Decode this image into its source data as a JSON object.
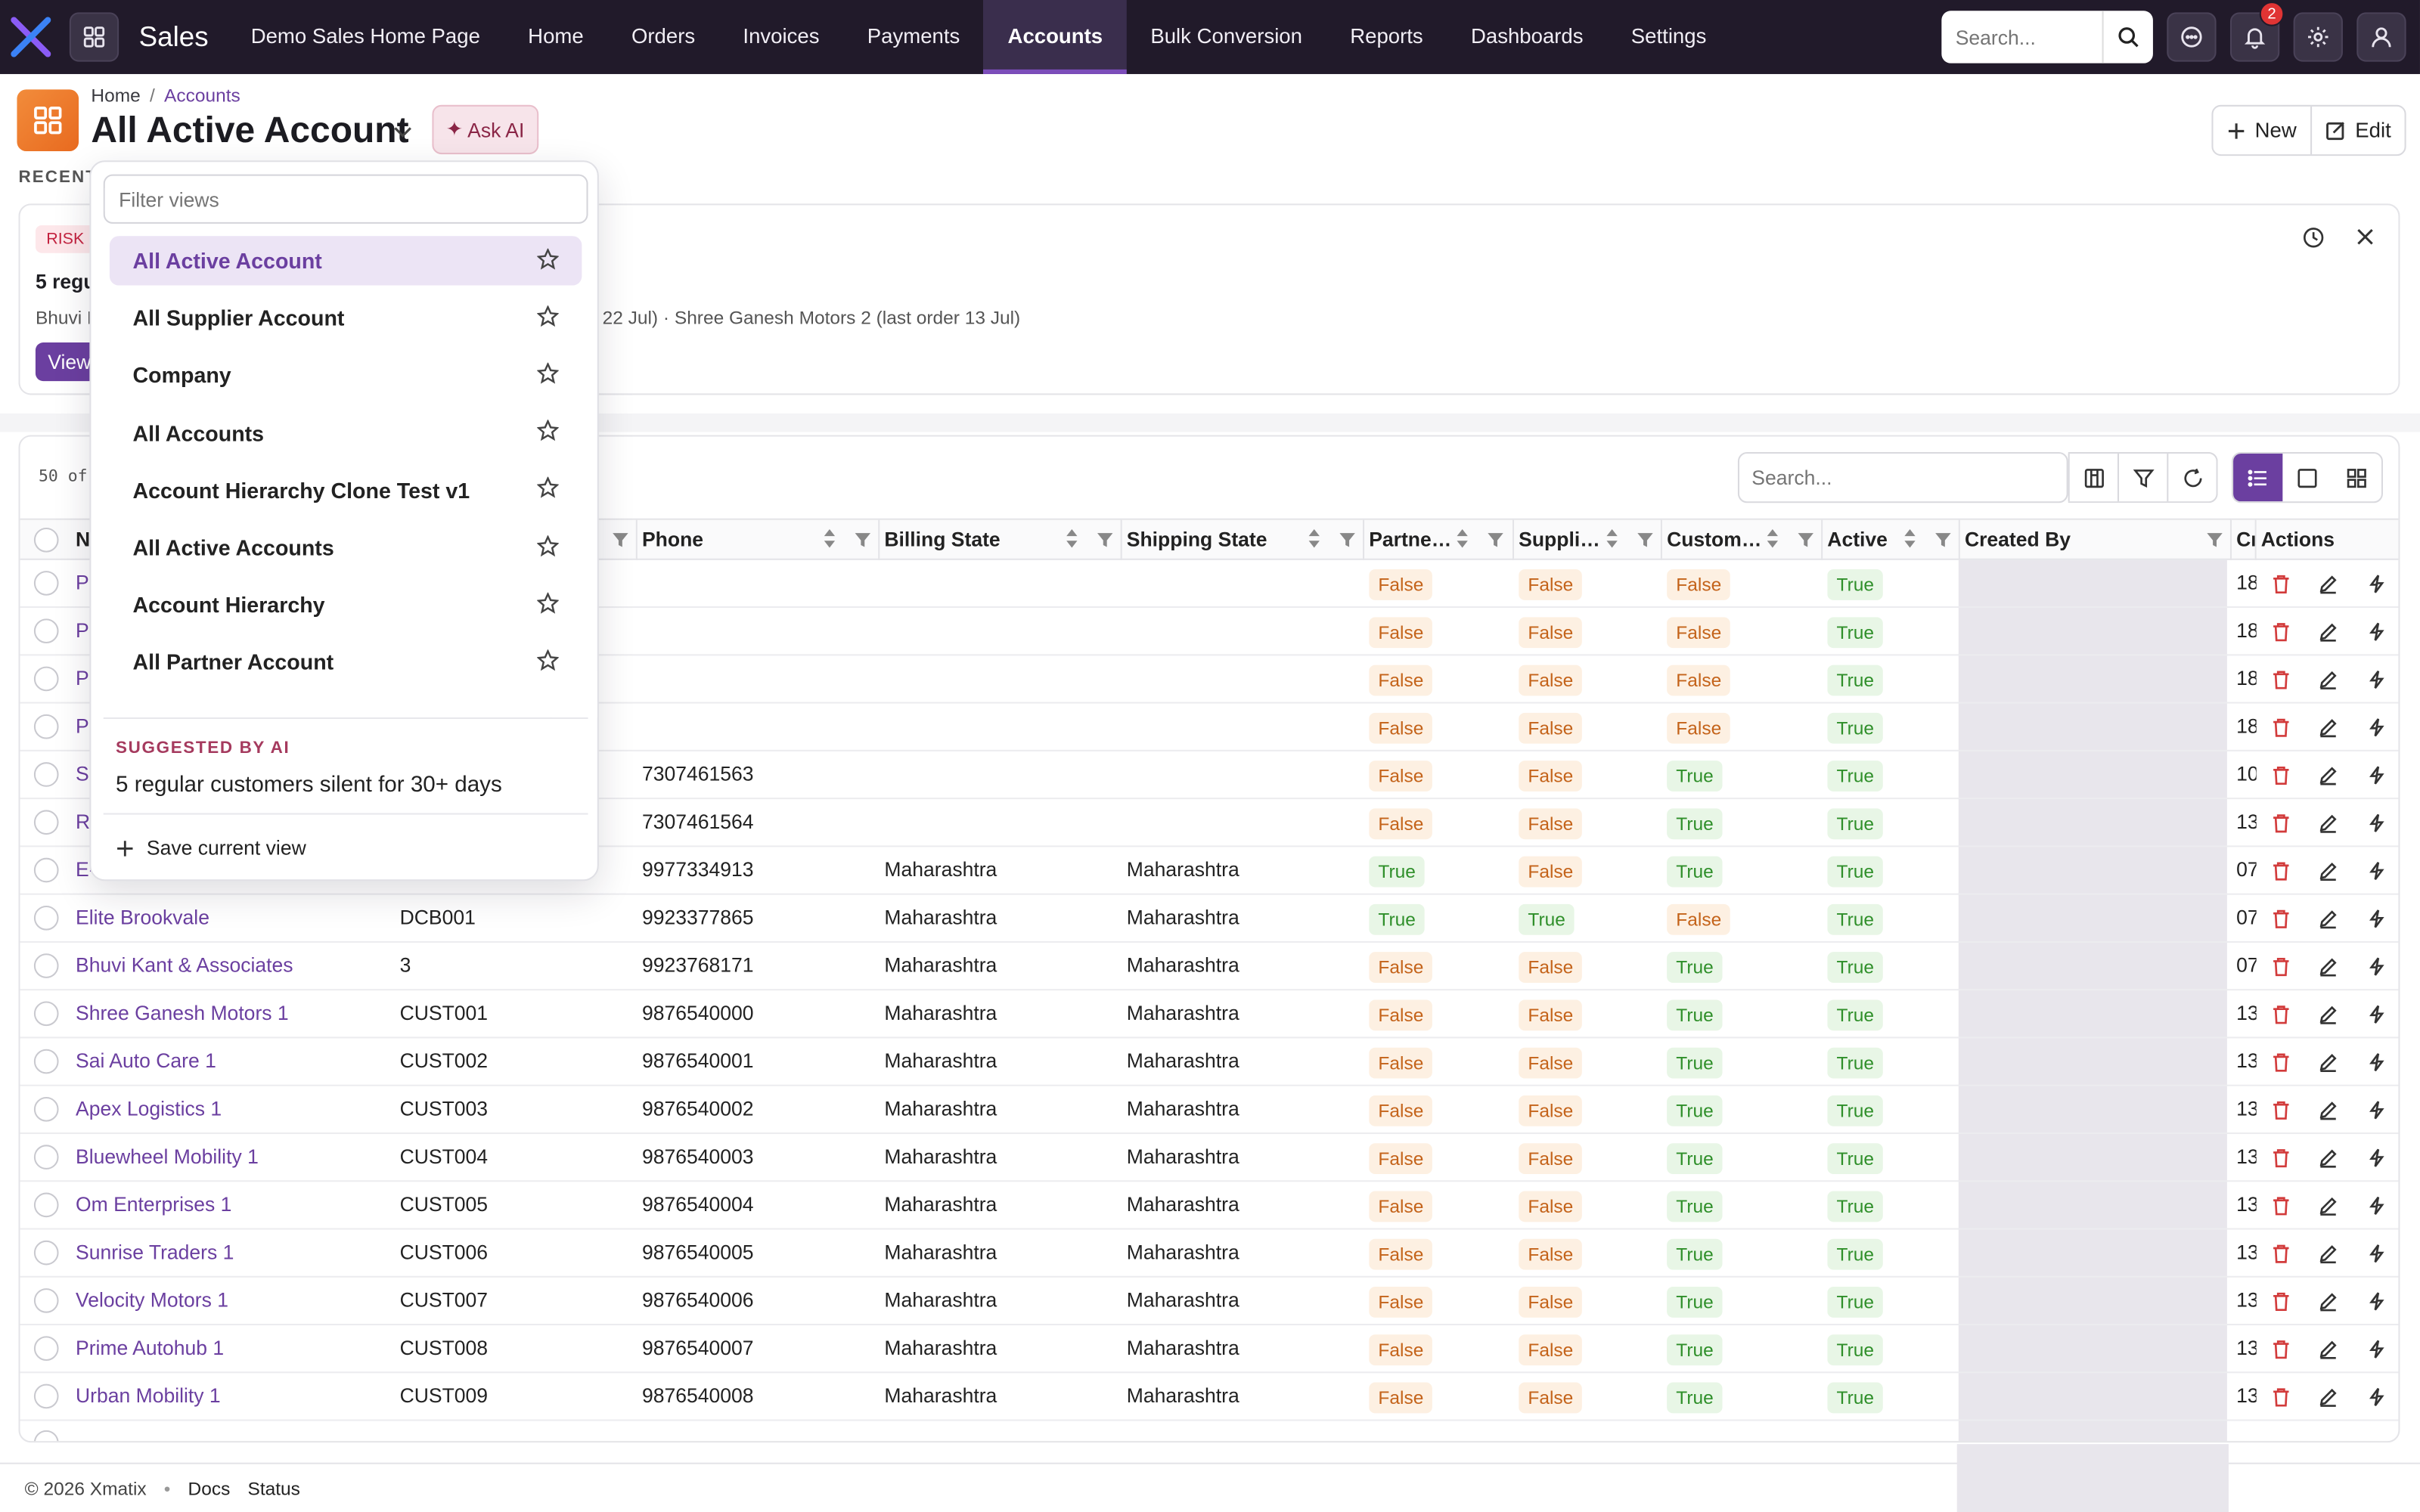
{
  "app": {
    "name": "Sales",
    "brand_color": "#7c4dba",
    "nav_bg": "#211a2a"
  },
  "nav": {
    "items": [
      {
        "label": "Demo Sales Home Page"
      },
      {
        "label": "Home"
      },
      {
        "label": "Orders"
      },
      {
        "label": "Invoices"
      },
      {
        "label": "Payments"
      },
      {
        "label": "Accounts",
        "active": true
      },
      {
        "label": "Bulk Conversion"
      },
      {
        "label": "Reports"
      },
      {
        "label": "Dashboards"
      },
      {
        "label": "Settings"
      }
    ],
    "search_placeholder": "Search...",
    "notification_count": "2",
    "icons": [
      "apps-grid-icon",
      "search-icon",
      "chat-icon",
      "bell-icon",
      "gear-icon",
      "user-icon"
    ]
  },
  "header": {
    "breadcrumb": [
      "Home",
      "Accounts"
    ],
    "title": "All Active Account",
    "ask_ai_label": "Ask AI",
    "new_label": "New",
    "edit_label": "Edit"
  },
  "recent": {
    "label": "RECENT",
    "badge": "RISK",
    "title": "5 regu",
    "desc_start": "Bhuvi K",
    "desc_end": "r 22 Jul) · Shree Ganesh Motors 2 (last order 13 Jul)",
    "view_label": "View"
  },
  "table": {
    "count_label": "50 of",
    "search_placeholder": "Search...",
    "columns": [
      "Na",
      "",
      "Phone",
      "Billing State",
      "Shipping State",
      "Partne…",
      "Suppli…",
      "Custom…",
      "Active",
      "Created By",
      "Cr",
      "Actions"
    ],
    "rows": [
      {
        "name": "Pu",
        "code": "",
        "phone": "",
        "billing": "",
        "shipping": "",
        "partner": "False",
        "supplier": "False",
        "customer": "False",
        "active": "True",
        "cr": "18"
      },
      {
        "name": "Pu",
        "code": "",
        "phone": "",
        "billing": "",
        "shipping": "",
        "partner": "False",
        "supplier": "False",
        "customer": "False",
        "active": "True",
        "cr": "18"
      },
      {
        "name": "Pu",
        "code": "",
        "phone": "",
        "billing": "",
        "shipping": "",
        "partner": "False",
        "supplier": "False",
        "customer": "False",
        "active": "True",
        "cr": "18"
      },
      {
        "name": "Pu",
        "code": "",
        "phone": "",
        "billing": "",
        "shipping": "",
        "partner": "False",
        "supplier": "False",
        "customer": "False",
        "active": "True",
        "cr": "18"
      },
      {
        "name": "Sh",
        "code": "",
        "phone": "7307461563",
        "billing": "",
        "shipping": "",
        "partner": "False",
        "supplier": "False",
        "customer": "True",
        "active": "True",
        "cr": "10"
      },
      {
        "name": "Ra",
        "code": "",
        "phone": "7307461564",
        "billing": "",
        "shipping": "",
        "partner": "False",
        "supplier": "False",
        "customer": "True",
        "active": "True",
        "cr": "13"
      },
      {
        "name": "E-",
        "code": "",
        "phone": "9977334913",
        "billing": "Maharashtra",
        "shipping": "Maharashtra",
        "partner": "True",
        "supplier": "False",
        "customer": "True",
        "active": "True",
        "cr": "07"
      },
      {
        "name": "Elite Brookvale",
        "code": "DCB001",
        "phone": "9923377865",
        "billing": "Maharashtra",
        "shipping": "Maharashtra",
        "partner": "True",
        "supplier": "True",
        "customer": "False",
        "active": "True",
        "cr": "07"
      },
      {
        "name": "Bhuvi Kant & Associates",
        "code": "3",
        "phone": "9923768171",
        "billing": "Maharashtra",
        "shipping": "Maharashtra",
        "partner": "False",
        "supplier": "False",
        "customer": "True",
        "active": "True",
        "cr": "07"
      },
      {
        "name": "Shree Ganesh Motors 1",
        "code": "CUST001",
        "phone": "9876540000",
        "billing": "Maharashtra",
        "shipping": "Maharashtra",
        "partner": "False",
        "supplier": "False",
        "customer": "True",
        "active": "True",
        "cr": "13"
      },
      {
        "name": "Sai Auto Care 1",
        "code": "CUST002",
        "phone": "9876540001",
        "billing": "Maharashtra",
        "shipping": "Maharashtra",
        "partner": "False",
        "supplier": "False",
        "customer": "True",
        "active": "True",
        "cr": "13"
      },
      {
        "name": "Apex Logistics 1",
        "code": "CUST003",
        "phone": "9876540002",
        "billing": "Maharashtra",
        "shipping": "Maharashtra",
        "partner": "False",
        "supplier": "False",
        "customer": "True",
        "active": "True",
        "cr": "13"
      },
      {
        "name": "Bluewheel Mobility 1",
        "code": "CUST004",
        "phone": "9876540003",
        "billing": "Maharashtra",
        "shipping": "Maharashtra",
        "partner": "False",
        "supplier": "False",
        "customer": "True",
        "active": "True",
        "cr": "13"
      },
      {
        "name": "Om Enterprises 1",
        "code": "CUST005",
        "phone": "9876540004",
        "billing": "Maharashtra",
        "shipping": "Maharashtra",
        "partner": "False",
        "supplier": "False",
        "customer": "True",
        "active": "True",
        "cr": "13"
      },
      {
        "name": "Sunrise Traders 1",
        "code": "CUST006",
        "phone": "9876540005",
        "billing": "Maharashtra",
        "shipping": "Maharashtra",
        "partner": "False",
        "supplier": "False",
        "customer": "True",
        "active": "True",
        "cr": "13"
      },
      {
        "name": "Velocity Motors 1",
        "code": "CUST007",
        "phone": "9876540006",
        "billing": "Maharashtra",
        "shipping": "Maharashtra",
        "partner": "False",
        "supplier": "False",
        "customer": "True",
        "active": "True",
        "cr": "13"
      },
      {
        "name": "Prime Autohub 1",
        "code": "CUST008",
        "phone": "9876540007",
        "billing": "Maharashtra",
        "shipping": "Maharashtra",
        "partner": "False",
        "supplier": "False",
        "customer": "True",
        "active": "True",
        "cr": "13"
      },
      {
        "name": "Urban Mobility 1",
        "code": "CUST009",
        "phone": "9876540008",
        "billing": "Maharashtra",
        "shipping": "Maharashtra",
        "partner": "False",
        "supplier": "False",
        "customer": "True",
        "active": "True",
        "cr": "13"
      }
    ],
    "status_colors": {
      "false": "#c4631a",
      "true": "#2f8f2a"
    }
  },
  "dropdown": {
    "filter_placeholder": "Filter views",
    "views": [
      {
        "label": "All Active Account",
        "active": true
      },
      {
        "label": "All Supplier Account"
      },
      {
        "label": "Company"
      },
      {
        "label": "All Accounts"
      },
      {
        "label": "Account Hierarchy Clone Test v1"
      },
      {
        "label": "All Active Accounts"
      },
      {
        "label": "Account Hierarchy"
      },
      {
        "label": "All Partner Account"
      }
    ],
    "ai_label": "SUGGESTED BY AI",
    "ai_item": "5 regular customers silent for 30+ days",
    "save_label": "Save current view"
  },
  "footer": {
    "copyright": "© 2026 Xmatix",
    "links": [
      "Docs",
      "Status"
    ]
  }
}
